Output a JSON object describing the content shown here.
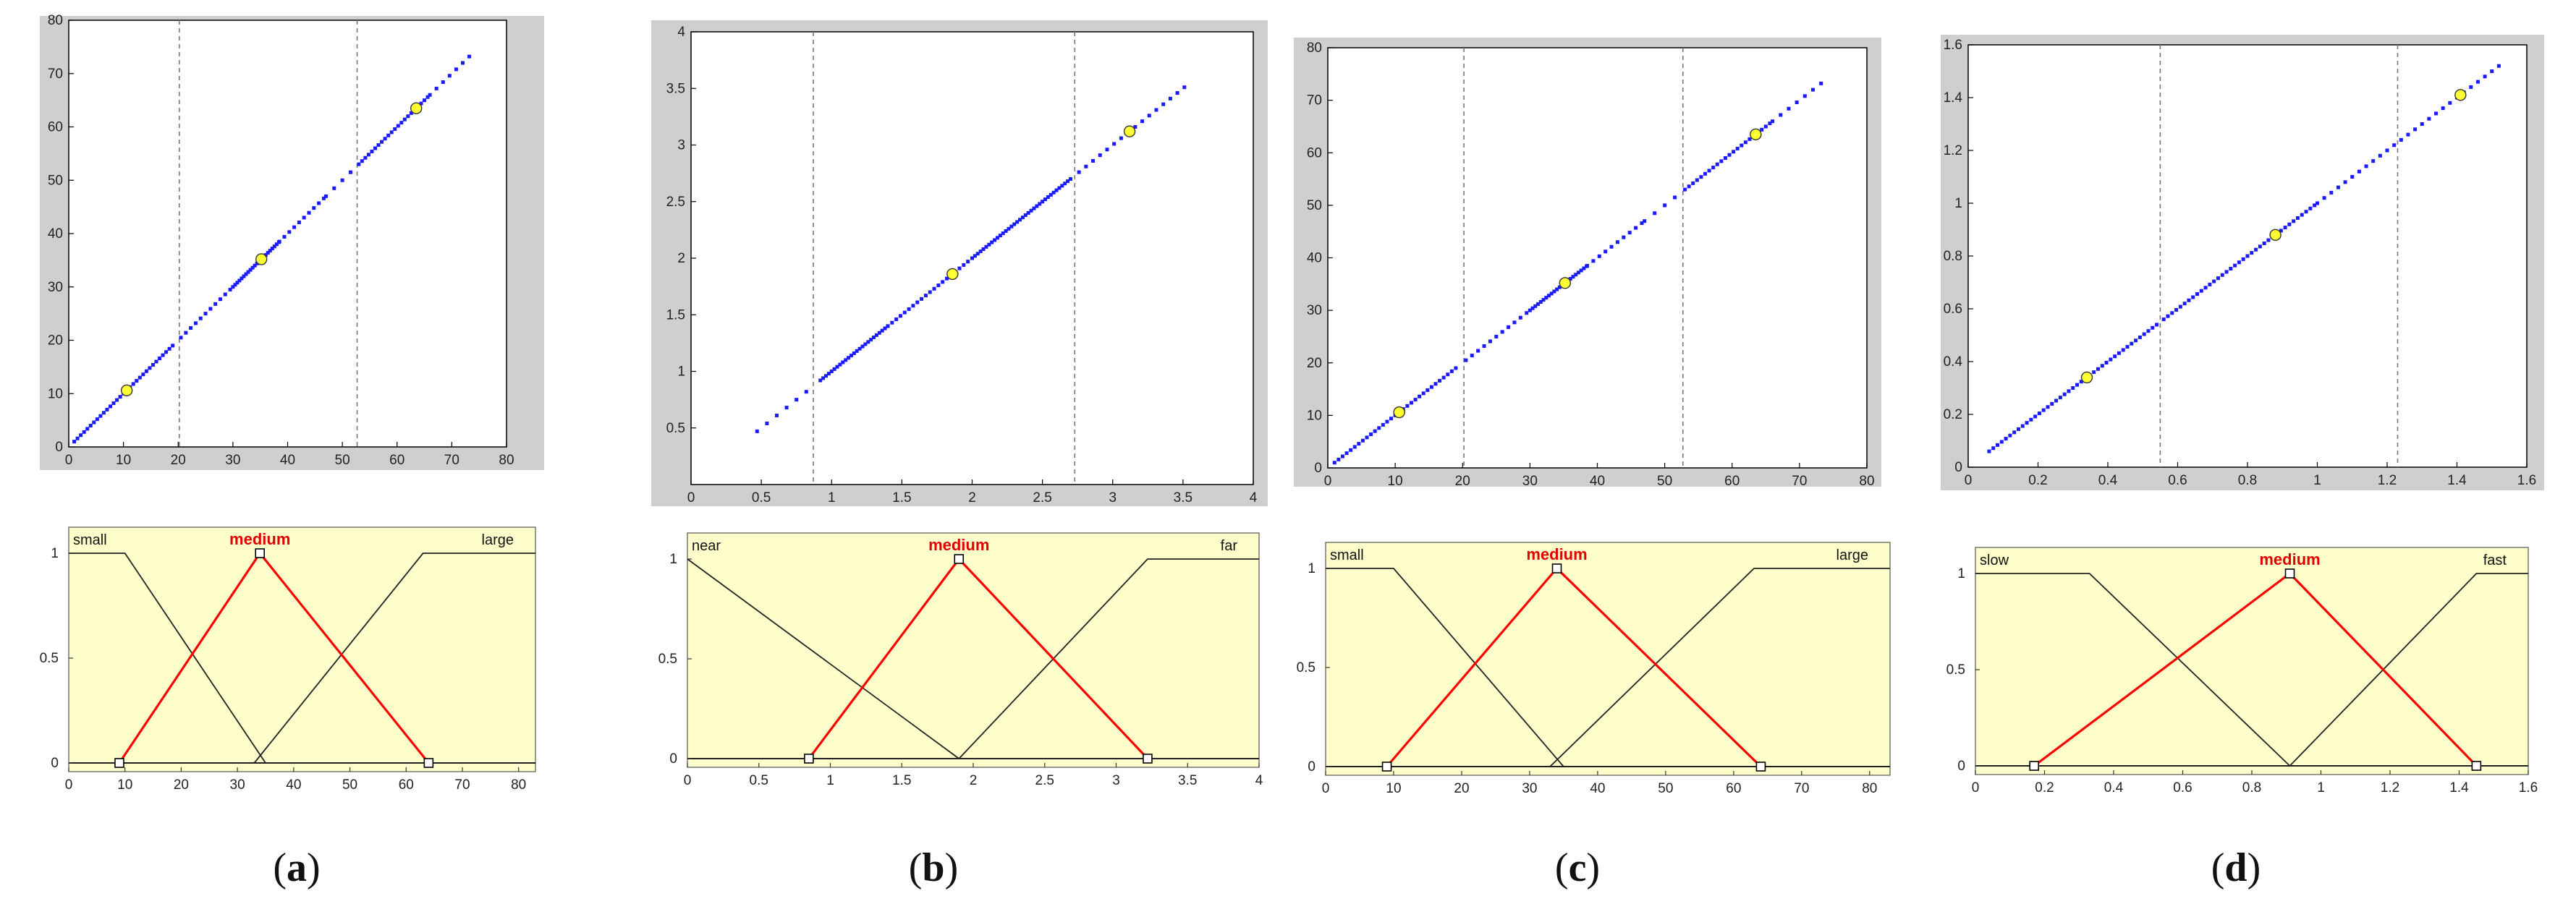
{
  "captions": [
    {
      "open": "(",
      "letter": "a",
      "close": ")"
    },
    {
      "open": "(",
      "letter": "b",
      "close": ")"
    },
    {
      "open": "(",
      "letter": "c",
      "close": ")"
    },
    {
      "open": "(",
      "letter": "d",
      "close": ")"
    }
  ],
  "colors": {
    "scatter_points": "#1a1aff",
    "centroids": "#ffff33",
    "highlight_mf": "#ff0000",
    "mf_line": "#222222",
    "mf_background": "#ffffcc",
    "frame_gray": "#cfcfcf"
  },
  "chart_data": [
    {
      "type": "scatter",
      "panel": "a-top",
      "xlim": [
        0,
        80
      ],
      "ylim": [
        0,
        80
      ],
      "xticks": [
        0,
        10,
        20,
        30,
        40,
        50,
        60,
        70,
        80
      ],
      "yticks": [
        0,
        10,
        20,
        30,
        40,
        50,
        60,
        70,
        80
      ],
      "vlines": [
        20.2,
        52.7
      ],
      "series": [
        {
          "segments": [
            [
              1,
              19.5,
              0.6
            ],
            [
              20.5,
              30,
              0.9
            ],
            [
              30,
              38.5,
              0.4
            ],
            [
              38.5,
              47,
              0.9
            ],
            [
              47,
              52.2,
              1.5
            ],
            [
              53,
              66,
              0.6
            ],
            [
              66,
              74,
              1.2
            ]
          ]
        }
      ],
      "centroids": [
        [
          10.6,
          10.6
        ],
        [
          35.2,
          35.2
        ],
        [
          63.5,
          63.5
        ]
      ]
    },
    {
      "type": "line",
      "panel": "a-bottom",
      "xlim": [
        0,
        83
      ],
      "ylim": [
        0,
        1
      ],
      "xticks": [
        0,
        10,
        20,
        30,
        40,
        50,
        60,
        70,
        80
      ],
      "yticks": [
        0,
        0.5,
        1
      ],
      "mfs": [
        {
          "name": "small",
          "points": [
            [
              0,
              1
            ],
            [
              10,
              1
            ],
            [
              35,
              0
            ]
          ],
          "highlight": false
        },
        {
          "name": "medium",
          "points": [
            [
              9,
              0
            ],
            [
              34,
              1
            ],
            [
              64,
              0
            ]
          ],
          "highlight": true
        },
        {
          "name": "large",
          "points": [
            [
              33,
              0
            ],
            [
              63,
              1
            ],
            [
              83,
              1
            ]
          ],
          "highlight": false
        }
      ],
      "handles": [
        [
          9,
          0
        ],
        [
          34,
          1
        ],
        [
          64,
          0
        ]
      ]
    },
    {
      "type": "scatter",
      "panel": "b-top",
      "xlim": [
        0,
        4
      ],
      "ylim": [
        0,
        4
      ],
      "xticks": [
        0,
        0.5,
        1,
        1.5,
        2,
        2.5,
        3,
        3.5,
        4
      ],
      "yticks": [
        0.5,
        1,
        1.5,
        2,
        2.5,
        3,
        3.5,
        4
      ],
      "vlines": [
        0.87,
        2.73
      ],
      "series": [
        {
          "segments": [
            [
              0.47,
              0.86,
              0.07
            ],
            [
              0.92,
              1.4,
              0.02
            ],
            [
              1.4,
              2.0,
              0.03
            ],
            [
              2.0,
              2.7,
              0.02
            ],
            [
              2.76,
              3.55,
              0.05
            ]
          ]
        }
      ],
      "centroids": [
        [
          1.86,
          1.86
        ],
        [
          3.12,
          3.12
        ]
      ]
    },
    {
      "type": "line",
      "panel": "b-bottom",
      "xlim": [
        0,
        4
      ],
      "ylim": [
        0,
        1
      ],
      "xticks": [
        0,
        0.5,
        1,
        1.5,
        2,
        2.5,
        3,
        3.5,
        4
      ],
      "yticks": [
        0,
        0.5,
        1
      ],
      "mfs": [
        {
          "name": "near",
          "points": [
            [
              0,
              1
            ],
            [
              1.9,
              0
            ]
          ],
          "highlight": false
        },
        {
          "name": "medium",
          "points": [
            [
              0.85,
              0
            ],
            [
              1.9,
              1
            ],
            [
              3.22,
              0
            ]
          ],
          "highlight": true
        },
        {
          "name": "far",
          "points": [
            [
              1.9,
              0
            ],
            [
              3.22,
              1
            ],
            [
              4,
              1
            ]
          ],
          "highlight": false
        }
      ],
      "handles": [
        [
          0.85,
          0
        ],
        [
          1.9,
          1
        ],
        [
          3.22,
          0
        ]
      ]
    },
    {
      "type": "scatter",
      "panel": "c-top",
      "xlim": [
        0,
        80
      ],
      "ylim": [
        0,
        80
      ],
      "xticks": [
        0,
        10,
        20,
        30,
        40,
        50,
        60,
        70,
        80
      ],
      "yticks": [
        0,
        10,
        20,
        30,
        40,
        50,
        60,
        70,
        80
      ],
      "vlines": [
        20.2,
        52.7
      ],
      "series": [
        {
          "segments": [
            [
              1,
              19.5,
              0.6
            ],
            [
              20.5,
              30,
              0.9
            ],
            [
              30,
              38.5,
              0.4
            ],
            [
              38.5,
              47,
              0.9
            ],
            [
              47,
              52.2,
              1.5
            ],
            [
              53,
              66,
              0.6
            ],
            [
              66,
              74,
              1.2
            ]
          ]
        }
      ],
      "centroids": [
        [
          10.6,
          10.6
        ],
        [
          35.2,
          35.2
        ],
        [
          63.5,
          63.5
        ]
      ]
    },
    {
      "type": "line",
      "panel": "c-bottom",
      "xlim": [
        0,
        83
      ],
      "ylim": [
        0,
        1
      ],
      "xticks": [
        0,
        10,
        20,
        30,
        40,
        50,
        60,
        70,
        80
      ],
      "yticks": [
        0,
        0.5,
        1
      ],
      "mfs": [
        {
          "name": "small",
          "points": [
            [
              0,
              1
            ],
            [
              10,
              1
            ],
            [
              35,
              0
            ]
          ],
          "highlight": false
        },
        {
          "name": "medium",
          "points": [
            [
              9,
              0
            ],
            [
              34,
              1
            ],
            [
              64,
              0
            ]
          ],
          "highlight": true
        },
        {
          "name": "large",
          "points": [
            [
              33,
              0
            ],
            [
              63,
              1
            ],
            [
              83,
              1
            ]
          ],
          "highlight": false
        }
      ],
      "handles": [
        [
          9,
          0
        ],
        [
          34,
          1
        ],
        [
          64,
          0
        ]
      ]
    },
    {
      "type": "scatter",
      "panel": "d-top",
      "xlim": [
        0,
        1.6
      ],
      "ylim": [
        0,
        1.6
      ],
      "xticks": [
        0,
        0.2,
        0.4,
        0.6,
        0.8,
        1,
        1.2,
        1.4,
        1.6
      ],
      "yticks": [
        0,
        0.2,
        0.4,
        0.6,
        0.8,
        1,
        1.2,
        1.4,
        1.6
      ],
      "vlines": [
        0.55,
        1.23
      ],
      "series": [
        {
          "segments": [
            [
              0.06,
              0.54,
              0.012
            ],
            [
              0.56,
              1.0,
              0.012
            ],
            [
              1.0,
              1.22,
              0.02
            ],
            [
              1.24,
              1.52,
              0.02
            ]
          ]
        }
      ],
      "centroids": [
        [
          0.34,
          0.34
        ],
        [
          0.88,
          0.88
        ],
        [
          1.41,
          1.41
        ]
      ]
    },
    {
      "type": "line",
      "panel": "d-bottom",
      "xlim": [
        0,
        1.6
      ],
      "ylim": [
        0,
        1
      ],
      "xticks": [
        0,
        0.2,
        0.4,
        0.6,
        0.8,
        1,
        1.2,
        1.4,
        1.6
      ],
      "yticks": [
        0,
        0.5,
        1
      ],
      "mfs": [
        {
          "name": "slow",
          "points": [
            [
              0,
              1
            ],
            [
              0.33,
              1
            ],
            [
              0.91,
              0
            ]
          ],
          "highlight": false
        },
        {
          "name": "medium",
          "points": [
            [
              0.17,
              0
            ],
            [
              0.91,
              1
            ],
            [
              1.45,
              0
            ]
          ],
          "highlight": true
        },
        {
          "name": "fast",
          "points": [
            [
              0.91,
              0
            ],
            [
              1.45,
              1
            ],
            [
              1.6,
              1
            ]
          ],
          "highlight": false
        }
      ],
      "handles": [
        [
          0.17,
          0
        ],
        [
          0.91,
          1
        ],
        [
          1.45,
          0
        ]
      ]
    }
  ]
}
